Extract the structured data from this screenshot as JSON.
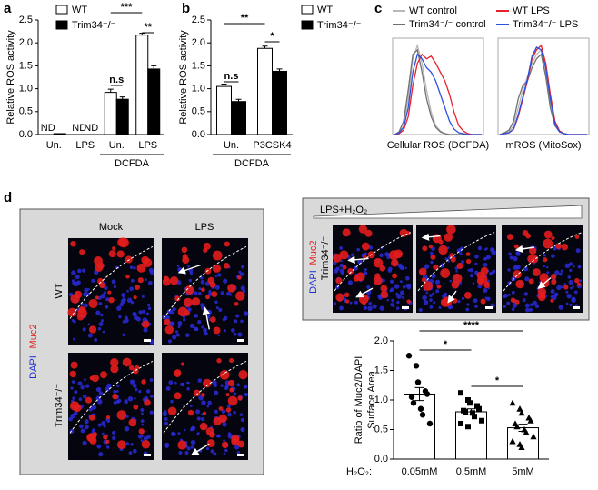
{
  "panel_labels": [
    "a",
    "b",
    "c",
    "d"
  ],
  "micrographs": {
    "mock": "Mock",
    "lps": "LPS",
    "wt": "WT",
    "ko": "Trim34⁻/⁻",
    "dapi": "DAPI",
    "muc2": "Muc2",
    "treatment": "LPS+H₂O₂",
    "ko_right": "Trim34⁻/⁻",
    "dapi_right": "DAPI",
    "muc2_right": "Muc2"
  },
  "chart_data": [
    {
      "type": "bar",
      "y_label": "Relative ROS activity",
      "categories": [
        "Un.",
        "LPS",
        "Un.",
        "LPS"
      ],
      "group_label": "DCFDA",
      "series": [
        {
          "name": "WT",
          "color": "#ffffff",
          "values": [
            null,
            null,
            0.92,
            2.17
          ],
          "errors": [
            null,
            null,
            0.07,
            0.04
          ],
          "value_labels": [
            "ND",
            "ND",
            null,
            null
          ]
        },
        {
          "name": "Trim34⁻/⁻",
          "color": "#000000",
          "values": [
            0.02,
            null,
            0.77,
            1.43
          ],
          "errors": [
            null,
            null,
            0.05,
            0.07
          ],
          "value_labels": [
            null,
            "ND",
            null,
            null
          ]
        }
      ],
      "ylim": [
        0,
        2.5
      ],
      "yticks": [
        {
          "value": 0,
          "label": "0.0"
        },
        {
          "value": 0.5,
          "label": "0.5"
        },
        {
          "value": 1,
          "label": "1.0"
        },
        {
          "value": 1.5,
          "label": "1.5"
        },
        {
          "value": 2,
          "label": "2.0"
        },
        {
          "value": 2.5,
          "label": "2.5"
        }
      ],
      "annotations": [
        "n.s",
        "***",
        "**"
      ]
    },
    {
      "type": "bar",
      "y_label": "Relative ROS activity",
      "categories": [
        "Un.",
        "P3CSK4"
      ],
      "group_label": "DCFDA",
      "series": [
        {
          "name": "WT",
          "color": "#ffffff",
          "values": [
            1.05,
            1.88
          ],
          "errors": [
            0.05,
            0.05
          ]
        },
        {
          "name": "Trim34⁻/⁻",
          "color": "#000000",
          "values": [
            0.72,
            1.38
          ],
          "errors": [
            0.05,
            0.05
          ]
        }
      ],
      "ylim": [
        0,
        2.5
      ],
      "yticks": [
        {
          "value": 0,
          "label": "0.0"
        },
        {
          "value": 0.5,
          "label": "0.5"
        },
        {
          "value": 1,
          "label": "1.0"
        },
        {
          "value": 1.5,
          "label": "1.5"
        },
        {
          "value": 2,
          "label": "2.0"
        },
        {
          "value": 2.5,
          "label": "2.5"
        }
      ],
      "annotations": [
        "n.s",
        "**",
        "*"
      ]
    },
    {
      "type": "histogram-overlay",
      "x_label": "Cellular ROS (DCFDA)",
      "ylim": [
        0,
        100
      ],
      "series": [
        {
          "name": "WT control",
          "color": "#b8b8b8",
          "values": [
            0,
            2,
            10,
            40,
            85,
            100,
            80,
            50,
            25,
            10,
            4,
            1,
            0,
            0,
            0,
            0,
            0,
            0,
            0,
            0
          ]
        },
        {
          "name": "Trim34⁻/⁻ control",
          "color": "#707070",
          "values": [
            0,
            3,
            15,
            50,
            90,
            95,
            70,
            40,
            20,
            8,
            3,
            1,
            0,
            0,
            0,
            0,
            0,
            0,
            0,
            0
          ]
        },
        {
          "name": "WT LPS",
          "color": "#e8202a",
          "values": [
            0,
            1,
            5,
            20,
            55,
            80,
            90,
            85,
            88,
            80,
            70,
            60,
            45,
            25,
            10,
            4,
            1,
            0,
            0,
            0
          ]
        },
        {
          "name": "Trim34⁻/⁻ LPS",
          "color": "#2a50e0",
          "values": [
            0,
            2,
            8,
            30,
            70,
            90,
            85,
            75,
            70,
            60,
            45,
            30,
            15,
            6,
            2,
            1,
            0,
            0,
            0,
            0
          ]
        }
      ]
    },
    {
      "type": "histogram-overlay",
      "x_label": "mROS (MitoSox)",
      "ylim": [
        0,
        100
      ],
      "series": [
        {
          "color": "#b8b8b8",
          "values": [
            0,
            1,
            3,
            10,
            30,
            50,
            65,
            80,
            90,
            95,
            70,
            35,
            12,
            4,
            1,
            0,
            0,
            0,
            0,
            0
          ]
        },
        {
          "color": "#707070",
          "values": [
            0,
            2,
            5,
            15,
            40,
            55,
            60,
            75,
            85,
            90,
            65,
            30,
            10,
            3,
            1,
            0,
            0,
            0,
            0,
            0
          ]
        },
        {
          "color": "#e8202a",
          "values": [
            0,
            1,
            2,
            6,
            20,
            40,
            60,
            85,
            95,
            100,
            80,
            45,
            15,
            4,
            1,
            0,
            0,
            0,
            0,
            0
          ]
        },
        {
          "color": "#2a50e0",
          "values": [
            0,
            1,
            2,
            6,
            22,
            42,
            62,
            88,
            98,
            95,
            75,
            40,
            12,
            3,
            1,
            0,
            0,
            0,
            0,
            0
          ]
        }
      ]
    },
    {
      "type": "bar-scatter",
      "y_label": [
        "Ratio of Muc2/DAPI",
        "Surface Area"
      ],
      "x_label": "H₂O₂:",
      "categories": [
        "0.05mM",
        "0.5mM",
        "5mM"
      ],
      "values": [
        1.1,
        0.8,
        0.53
      ],
      "errors": [
        0.11,
        0.05,
        0.06
      ],
      "color": "#ffffff",
      "points": [
        [
          1.75,
          1.58,
          1.3,
          1.15,
          1.1,
          1.05,
          0.95,
          0.85,
          0.75,
          0.6
        ],
        [
          1.12,
          1.0,
          0.95,
          0.9,
          0.85,
          0.82,
          0.8,
          0.78,
          0.72,
          0.65,
          0.6,
          0.55
        ],
        [
          0.95,
          0.85,
          0.78,
          0.7,
          0.65,
          0.6,
          0.55,
          0.5,
          0.45,
          0.38,
          0.3,
          0.25,
          0.2
        ]
      ],
      "markers": [
        "circle",
        "square",
        "triangle"
      ],
      "ylim": [
        0,
        2
      ],
      "yticks": [
        {
          "value": 0,
          "label": "0.0"
        },
        {
          "value": 0.5,
          "label": "0.5"
        },
        {
          "value": 1,
          "label": "1.0"
        },
        {
          "value": 1.5,
          "label": "1.5"
        },
        {
          "value": 2,
          "label": "2.0"
        }
      ],
      "annotations": [
        "*",
        "****",
        "*"
      ]
    }
  ]
}
